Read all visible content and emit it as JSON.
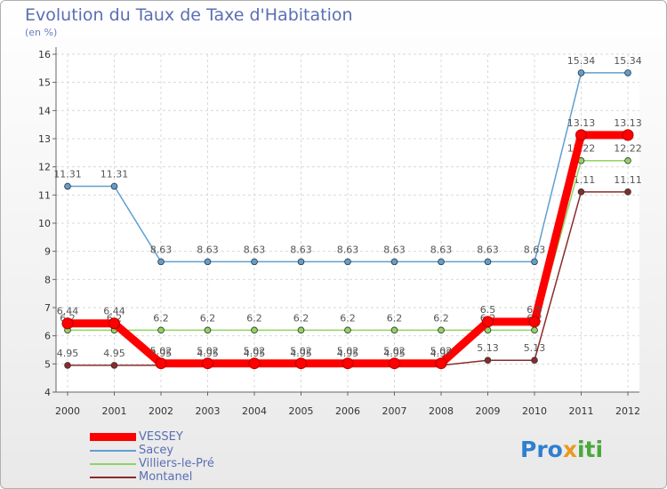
{
  "chart_data": {
    "type": "line",
    "title": "Evolution du Taux de Taxe d'Habitation",
    "ylabel": "(en %)",
    "xlabel": "",
    "x": [
      "2000",
      "2001",
      "2002",
      "2003",
      "2004",
      "2005",
      "2006",
      "2007",
      "2008",
      "2009",
      "2010",
      "2011",
      "2012"
    ],
    "ylim": [
      4,
      16
    ],
    "yticks": [
      4,
      5,
      6,
      7,
      8,
      9,
      10,
      11,
      12,
      13,
      14,
      15,
      16
    ],
    "grid": true,
    "legend_position": "bottom-left",
    "series": [
      {
        "name": "VESSEY",
        "color": "#ff0000",
        "values": [
          6.44,
          6.44,
          5.02,
          5.02,
          5.02,
          5.02,
          5.02,
          5.02,
          5.02,
          6.5,
          6.5,
          13.13,
          13.13
        ],
        "labels": [
          "6.44",
          "6.44",
          "5.02",
          "5.02",
          "5.02",
          "5.02",
          "5.02",
          "5.02",
          "5.02",
          "6.5",
          "6.5",
          "13.13",
          "13.13"
        ]
      },
      {
        "name": "Sacey",
        "color": "#5f9fd0",
        "values": [
          11.31,
          11.31,
          8.63,
          8.63,
          8.63,
          8.63,
          8.63,
          8.63,
          8.63,
          8.63,
          8.63,
          15.34,
          15.34
        ],
        "labels": [
          "11.31",
          "11.31",
          "8.63",
          "8.63",
          "8.63",
          "8.63",
          "8.63",
          "8.63",
          "8.63",
          "8.63",
          "8.63",
          "15.34",
          "15.34"
        ]
      },
      {
        "name": "Villiers-le-Pré",
        "color": "#8fd460",
        "values": [
          6.2,
          6.2,
          6.2,
          6.2,
          6.2,
          6.2,
          6.2,
          6.2,
          6.2,
          6.2,
          6.2,
          12.22,
          12.22
        ],
        "labels": [
          "6.2",
          "6.2",
          "6.2",
          "6.2",
          "6.2",
          "6.2",
          "6.2",
          "6.2",
          "6.2",
          "6.2",
          "6.2",
          "12.22",
          "12.22"
        ]
      },
      {
        "name": "Montanel",
        "color": "#8a2a2a",
        "values": [
          4.95,
          4.95,
          4.95,
          4.95,
          4.95,
          4.95,
          4.95,
          4.95,
          4.95,
          5.13,
          5.13,
          11.11,
          11.11
        ],
        "labels": [
          "4.95",
          "4.95",
          "4.95",
          "4.95",
          "4.95",
          "4.95",
          "4.95",
          "4.95",
          "4.95",
          "5.13",
          "5.13",
          "11.11",
          "11.11"
        ]
      }
    ]
  },
  "logo": {
    "part1": "Pro",
    "part2": "x",
    "part3": "iti"
  }
}
